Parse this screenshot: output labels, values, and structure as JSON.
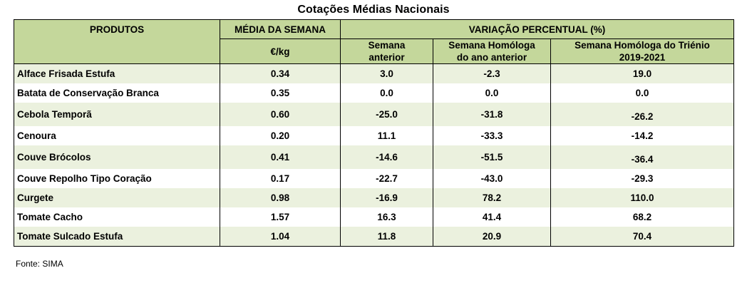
{
  "title": "Cotações Médias Nacionais",
  "headers": {
    "produtos": "PRODUTOS",
    "media_semana": "MÉDIA DA SEMANA",
    "unit": "€/kg",
    "variacao": "VARIAÇÃO PERCENTUAL (%)",
    "sem_ant_1": "Semana",
    "sem_ant_2": "anterior",
    "hom_ano_1": "Semana Homóloga",
    "hom_ano_2": "do ano anterior",
    "hom_trienio_1": "Semana Homóloga do Triénio",
    "hom_trienio_2": "2019-2021"
  },
  "rows": [
    {
      "produto": "Alface Frisada Estufa",
      "media": "0.34",
      "sem_ant": "3.0",
      "hom_ano": "-2.3",
      "hom_trienio": "19.0"
    },
    {
      "produto": "Batata de Conservação Branca",
      "media": "0.35",
      "sem_ant": "0.0",
      "hom_ano": "0.0",
      "hom_trienio": "0.0"
    },
    {
      "produto": "Cebola Temporã",
      "media": "0.60",
      "sem_ant": "-25.0",
      "hom_ano": "-31.8",
      "hom_trienio": "-26.2"
    },
    {
      "produto": "Cenoura",
      "media": "0.20",
      "sem_ant": "11.1",
      "hom_ano": "-33.3",
      "hom_trienio": "-14.2"
    },
    {
      "produto": "Couve Brócolos",
      "media": "0.41",
      "sem_ant": "-14.6",
      "hom_ano": "-51.5",
      "hom_trienio": "-36.4"
    },
    {
      "produto": "Couve Repolho Tipo Coração",
      "media": "0.17",
      "sem_ant": "-22.7",
      "hom_ano": "-43.0",
      "hom_trienio": "-29.3"
    },
    {
      "produto": "Curgete",
      "media": "0.98",
      "sem_ant": "-16.9",
      "hom_ano": "78.2",
      "hom_trienio": "110.0"
    },
    {
      "produto": "Tomate Cacho",
      "media": "1.57",
      "sem_ant": "16.3",
      "hom_ano": "41.4",
      "hom_trienio": "68.2"
    },
    {
      "produto": "Tomate Sulcado Estufa",
      "media": "1.04",
      "sem_ant": "11.8",
      "hom_ano": "20.9",
      "hom_trienio": "70.4"
    }
  ],
  "source": "Fonte: SIMA"
}
